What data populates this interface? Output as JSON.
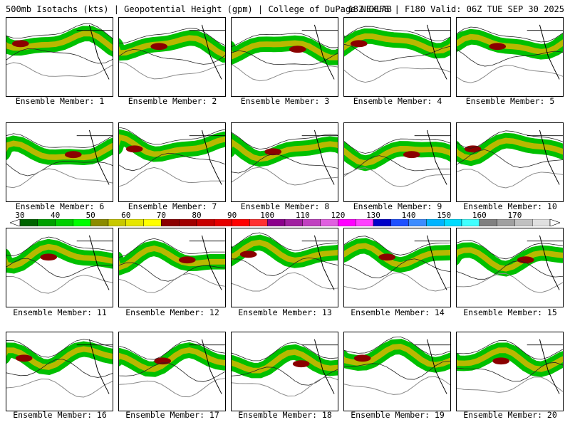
{
  "header": {
    "title_left": "500mb Isotachs (kts) | Geopotential Height (gpm) | College of DuPage NEXLAB",
    "title_right": "18Z GEFS | F180 Valid: 06Z TUE SEP 30 2025"
  },
  "panels": [
    {
      "label": "Ensemble Member: 1"
    },
    {
      "label": "Ensemble Member: 2"
    },
    {
      "label": "Ensemble Member: 3"
    },
    {
      "label": "Ensemble Member: 4"
    },
    {
      "label": "Ensemble Member: 5"
    },
    {
      "label": "Ensemble Member: 6"
    },
    {
      "label": "Ensemble Member: 7"
    },
    {
      "label": "Ensemble Member: 8"
    },
    {
      "label": "Ensemble Member: 9"
    },
    {
      "label": "Ensemble Member: 10"
    },
    {
      "label": "Ensemble Member: 11"
    },
    {
      "label": "Ensemble Member: 12"
    },
    {
      "label": "Ensemble Member: 13"
    },
    {
      "label": "Ensemble Member: 14"
    },
    {
      "label": "Ensemble Member: 15"
    },
    {
      "label": "Ensemble Member: 16"
    },
    {
      "label": "Ensemble Member: 17"
    },
    {
      "label": "Ensemble Member: 18"
    },
    {
      "label": "Ensemble Member: 19"
    },
    {
      "label": "Ensemble Member: 20"
    }
  ],
  "colorbar": {
    "labels": [
      "30",
      "40",
      "50",
      "60",
      "70",
      "80",
      "90",
      "100",
      "110",
      "120",
      "130",
      "140",
      "150",
      "160",
      "170"
    ],
    "colors": [
      "#006400",
      "#00a000",
      "#00d000",
      "#00ff00",
      "#8b8b00",
      "#c8c800",
      "#e6e600",
      "#ffff00",
      "#8b0000",
      "#a00000",
      "#c80000",
      "#e60000",
      "#ff0000",
      "#ff3030",
      "#8b008b",
      "#a020a0",
      "#c040c0",
      "#e060e0",
      "#ff00ff",
      "#ff40ff",
      "#0000c8",
      "#1e50ff",
      "#3c8cff",
      "#00b4ff",
      "#00dcff",
      "#40ffff",
      "#808080",
      "#a0a0a0",
      "#c0c0c0",
      "#e0e0e0"
    ]
  }
}
